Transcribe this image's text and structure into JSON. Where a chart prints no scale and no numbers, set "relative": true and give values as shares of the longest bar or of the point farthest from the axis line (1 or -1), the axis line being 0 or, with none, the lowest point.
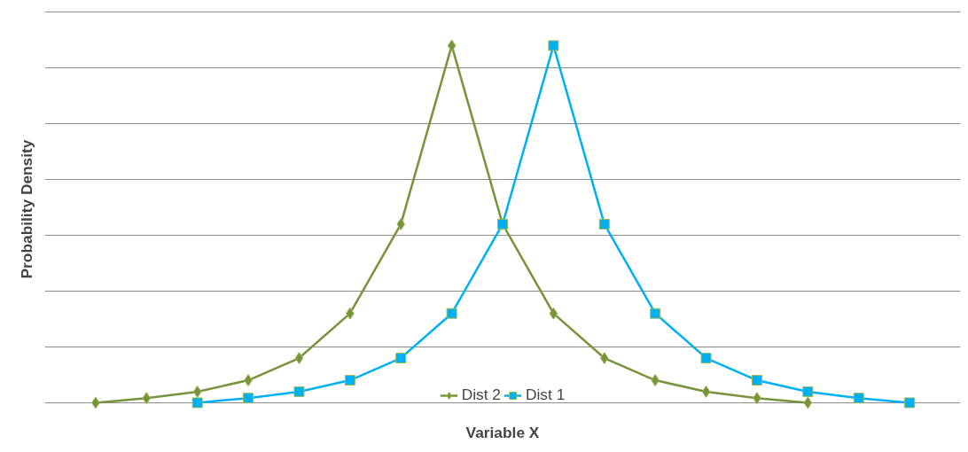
{
  "chart_data": {
    "type": "line",
    "relative": true,
    "xlabel": "Variable X",
    "ylabel": "Probability Density",
    "categories": [
      null,
      null,
      null,
      null,
      null,
      null,
      null,
      null,
      null,
      null,
      null,
      null,
      null,
      null,
      null,
      null,
      null
    ],
    "series": [
      {
        "name": "Dist 2",
        "color": "#77933c",
        "marker": "diamond",
        "values": [
          0,
          0.013,
          0.031,
          0.063,
          0.125,
          0.25,
          0.5,
          1,
          0.5,
          0.25,
          0.125,
          0.063,
          0.031,
          0.013,
          0,
          null,
          null
        ]
      },
      {
        "name": "Dist 1",
        "color": "#00b0f0",
        "marker": "square",
        "values": [
          null,
          null,
          0,
          0.013,
          0.031,
          0.063,
          0.125,
          0.25,
          0.5,
          1,
          0.5,
          0.25,
          0.125,
          0.063,
          0.031,
          0.013,
          0
        ]
      }
    ],
    "grid": "y",
    "legend": "bottom"
  }
}
